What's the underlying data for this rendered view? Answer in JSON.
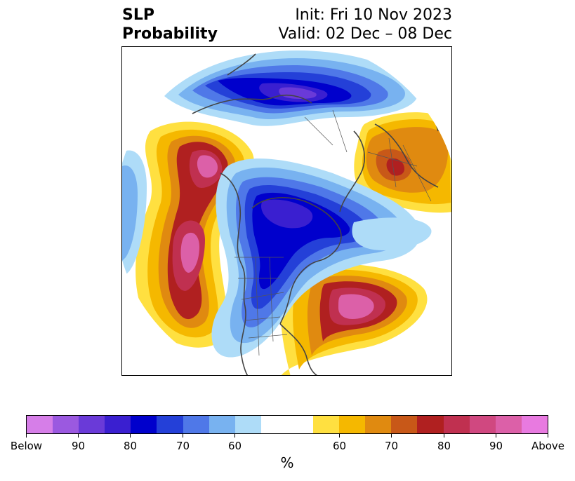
{
  "title": {
    "left_line1": "SLP",
    "left_line2": "Probability",
    "right_line1": "Init: Fri 10 Nov 2023",
    "right_line2": "Valid: 02 Dec – 08 Dec"
  },
  "colorbar": {
    "colors": [
      "#d67ee8",
      "#9b59e0",
      "#6a3ad8",
      "#3a1fd0",
      "#0000cc",
      "#2440d8",
      "#4f78e8",
      "#78b2f0",
      "#aedcf8",
      "#ffffff",
      "#ffe040",
      "#f5b800",
      "#e08a10",
      "#c85818",
      "#b02020",
      "#c03050",
      "#d04880",
      "#dc60a8",
      "#e87ae0"
    ],
    "tick_labels": [
      "Below",
      "90",
      "80",
      "70",
      "60",
      "60",
      "70",
      "80",
      "90",
      "Above"
    ],
    "unit": "%"
  },
  "map": {
    "projection": "north polar stereographic",
    "features": [
      "coastlines",
      "country borders",
      "US state borders"
    ]
  }
}
